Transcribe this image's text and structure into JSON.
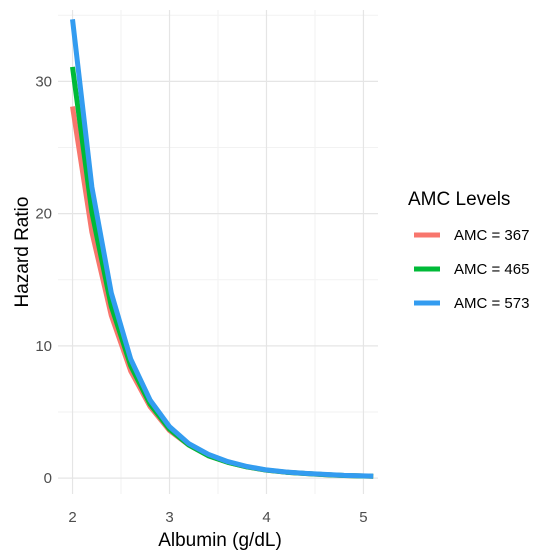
{
  "chart_data": {
    "type": "line",
    "xlabel": "Albumin (g/dL)",
    "ylabel": "Hazard Ratio",
    "xlim": [
      1.85,
      5.15
    ],
    "ylim": [
      -1.2,
      35.4
    ],
    "x_ticks": [
      2,
      3,
      4,
      5
    ],
    "y_ticks": [
      0,
      10,
      20,
      30
    ],
    "grid": true,
    "legend": {
      "title": "AMC Levels",
      "position": "right"
    },
    "x": [
      2.0,
      2.2,
      2.4,
      2.6,
      2.8,
      3.0,
      3.2,
      3.4,
      3.6,
      3.8,
      4.0,
      4.2,
      4.4,
      4.6,
      4.8,
      5.0,
      5.1
    ],
    "series": [
      {
        "name": "AMC = 367",
        "color": "#F8766D",
        "values": [
          28.1,
          18.6,
          12.3,
          8.1,
          5.4,
          3.6,
          2.5,
          1.7,
          1.2,
          0.85,
          0.6,
          0.45,
          0.35,
          0.27,
          0.2,
          0.16,
          0.14
        ]
      },
      {
        "name": "AMC = 465",
        "color": "#00BA38",
        "values": [
          31.1,
          20.1,
          13.0,
          8.5,
          5.6,
          3.7,
          2.5,
          1.7,
          1.2,
          0.85,
          0.6,
          0.45,
          0.35,
          0.27,
          0.2,
          0.16,
          0.14
        ]
      },
      {
        "name": "AMC = 573",
        "color": "#339CF0",
        "values": [
          34.7,
          22.0,
          14.0,
          9.0,
          5.9,
          3.9,
          2.6,
          1.8,
          1.25,
          0.88,
          0.62,
          0.46,
          0.36,
          0.28,
          0.21,
          0.17,
          0.15
        ]
      }
    ]
  }
}
